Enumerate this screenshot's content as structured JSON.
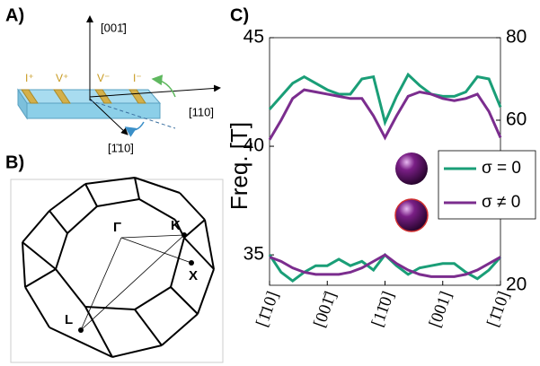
{
  "panel_a": {
    "label": "A)",
    "contacts": [
      "I⁺",
      "V⁺",
      "V⁻",
      "I⁻"
    ],
    "axis_labels": [
      "[001̄]",
      "[110]",
      "[1̄10]"
    ]
  },
  "panel_b": {
    "label": "B)",
    "points": [
      "Γ",
      "K",
      "X",
      "L"
    ]
  },
  "chart_data": {
    "type": "line",
    "label": "C)",
    "ylabel": "Freq. [T]",
    "x": [
      0,
      0.2,
      0.4,
      0.6,
      0.8,
      1,
      1.2,
      1.4,
      1.6,
      1.8,
      2,
      2.2,
      2.4,
      2.6,
      2.8,
      3,
      3.2,
      3.4,
      3.6,
      3.8,
      4
    ],
    "xlim": [
      0,
      4
    ],
    "xticks": [
      {
        "value": 0,
        "label": "[1̄10]"
      },
      {
        "value": 1,
        "label": "[001̄]"
      },
      {
        "value": 2,
        "label": "[11̄0]"
      },
      {
        "value": 3,
        "label": "[001]"
      },
      {
        "value": 4,
        "label": "[1̄10]"
      }
    ],
    "ylim": [
      33.6,
      45
    ],
    "yticks": [
      35,
      40,
      45
    ],
    "y2lim": [
      20,
      80
    ],
    "y2ticks": [
      20,
      60,
      80
    ],
    "series": [
      {
        "name": "σ = 0",
        "color": "#1a9e77",
        "values": [
          41.7,
          42.3,
          42.9,
          43.2,
          42.9,
          42.6,
          42.4,
          42.4,
          43.1,
          43.2,
          41.1,
          42.3,
          43.3,
          42.8,
          42.4,
          42.3,
          42.3,
          42.5,
          43.2,
          43.1,
          41.8
        ],
        "values_lower": [
          35.0,
          34.2,
          33.8,
          34.2,
          34.5,
          34.5,
          34.8,
          34.5,
          34.7,
          34.3,
          35.0,
          34.5,
          34.1,
          34.4,
          34.5,
          34.6,
          34.6,
          34.2,
          33.9,
          34.3,
          34.9
        ]
      },
      {
        "name": "σ ≠ 0",
        "color": "#7b2d8e",
        "values": [
          40.3,
          41.2,
          42.2,
          42.6,
          42.5,
          42.4,
          42.3,
          42.2,
          42.2,
          41.4,
          40.4,
          41.4,
          42.3,
          42.5,
          42.4,
          42.2,
          42.1,
          42.2,
          42.4,
          41.6,
          40.4
        ],
        "values_lower": [
          34.9,
          34.7,
          34.4,
          34.2,
          34.1,
          34.1,
          34.1,
          34.2,
          34.4,
          34.7,
          35.0,
          34.6,
          34.3,
          34.1,
          34.0,
          34.0,
          34.0,
          34.1,
          34.3,
          34.6,
          34.9
        ]
      }
    ]
  }
}
